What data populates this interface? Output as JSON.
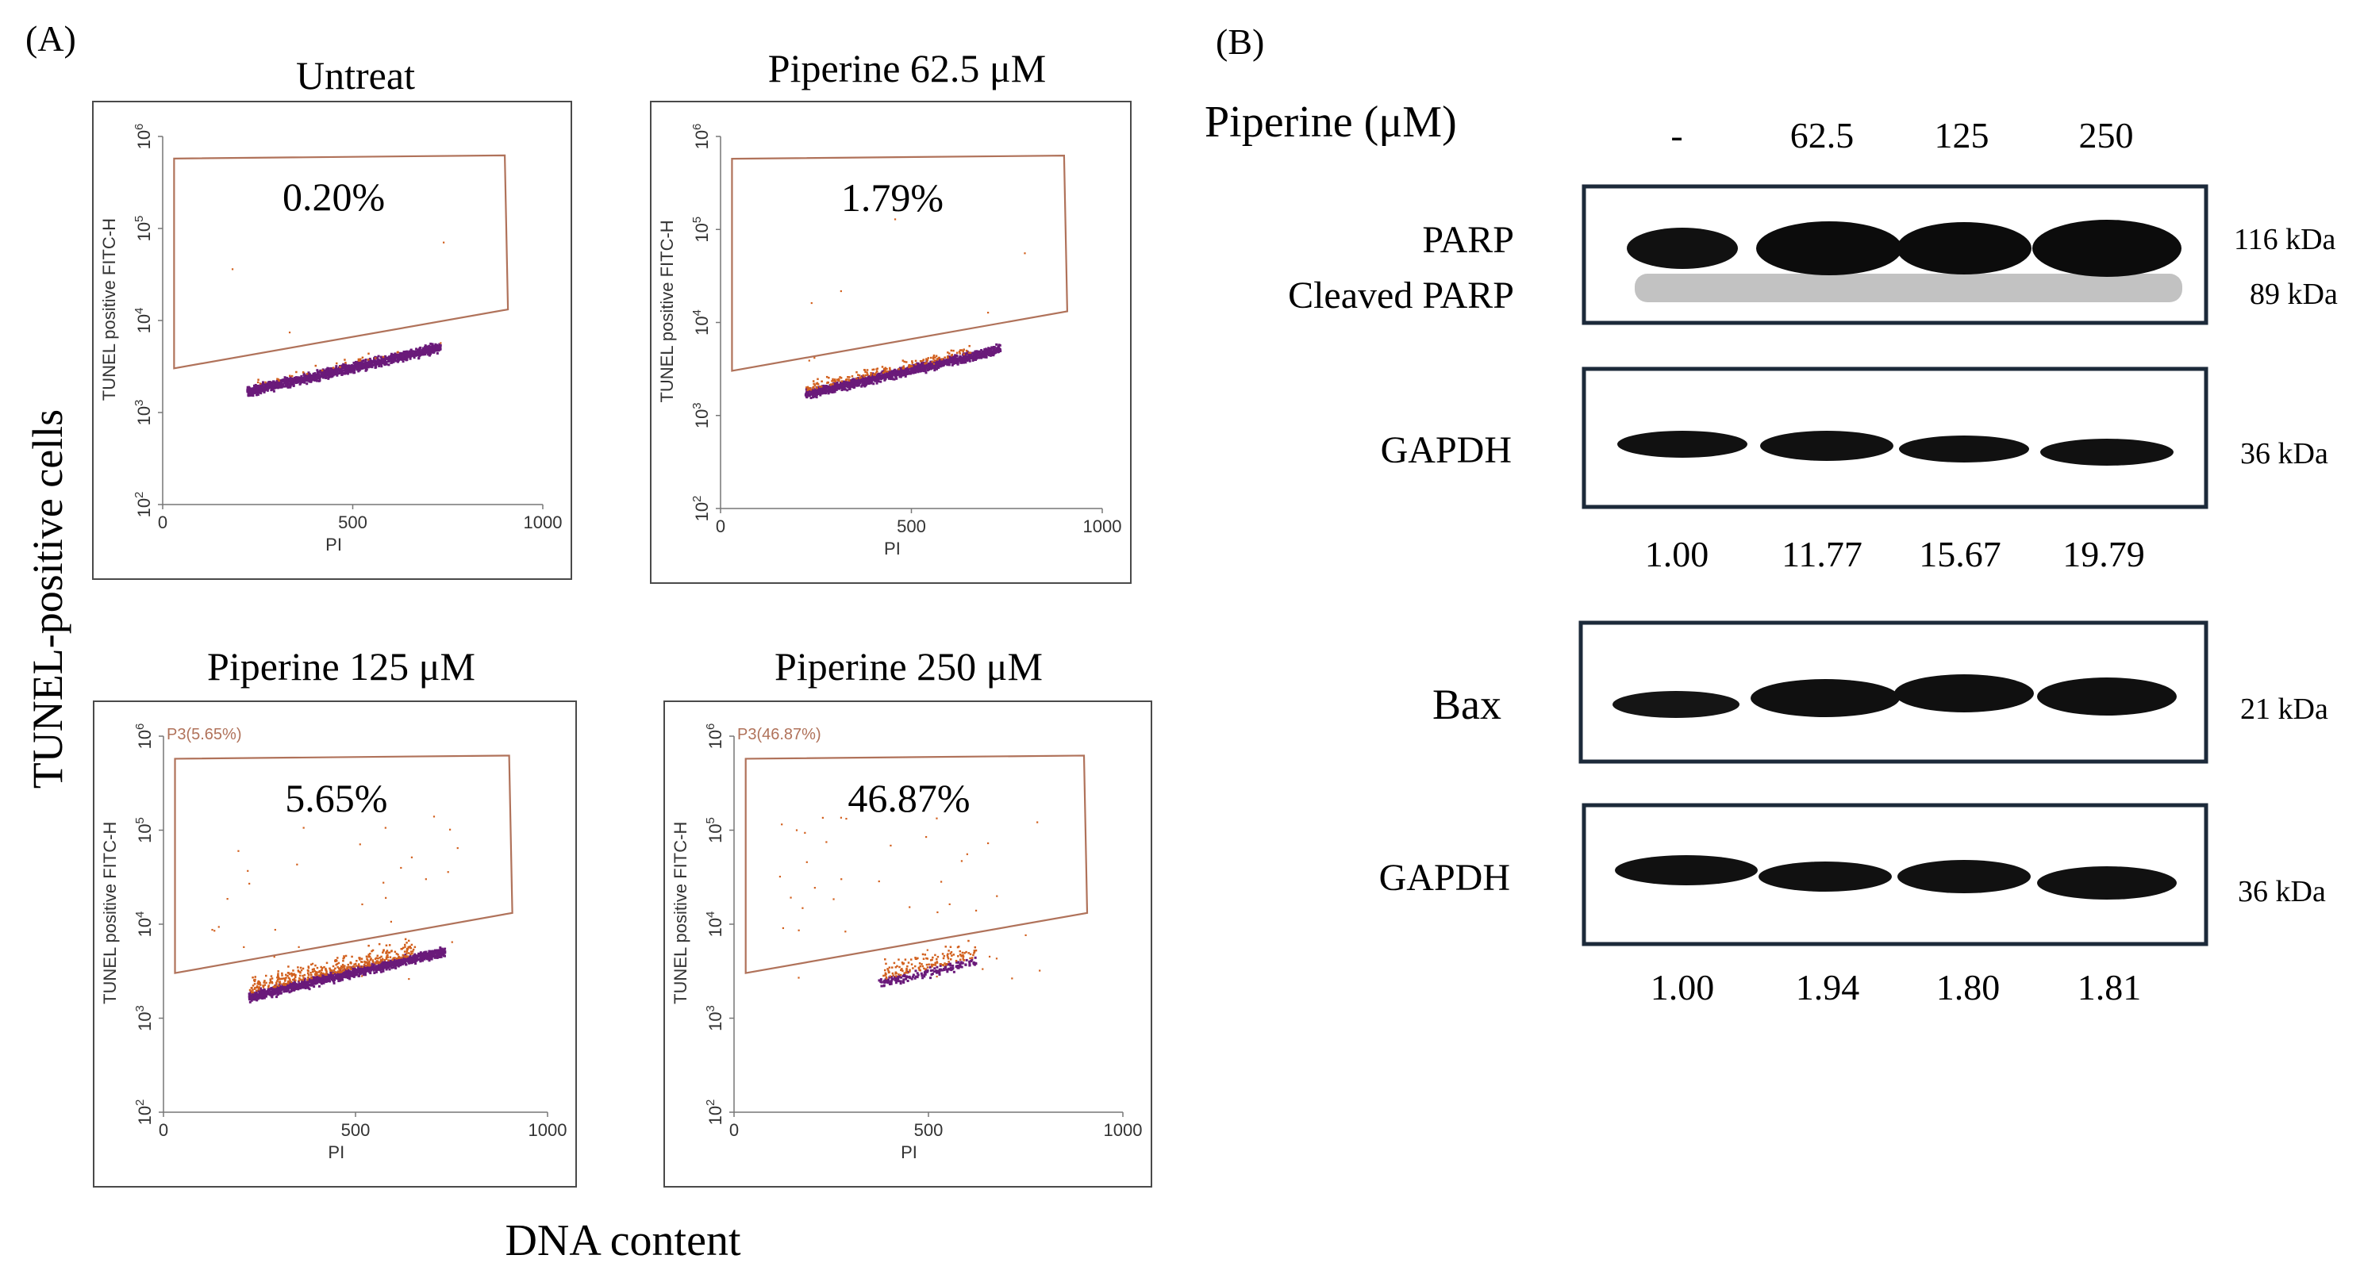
{
  "panel_a": {
    "label": "(A)",
    "y_title": "TUNEL-positive cells",
    "x_title": "DNA content",
    "plots": [
      {
        "title": "Untreat",
        "percent": "0.20%",
        "gate_label": "",
        "ylabel": "TUNEL positive FITC-H",
        "xlabel": "PI",
        "x_ticks": [
          "0",
          "500",
          "1000"
        ],
        "y_ticks": [
          "10",
          "10",
          "10",
          "10",
          "10"
        ],
        "y_exp": [
          "2",
          "3",
          "4",
          "5",
          "6"
        ]
      },
      {
        "title": "Piperine 62.5 μM",
        "percent": "1.79%",
        "gate_label": "",
        "ylabel": "TUNEL positive FITC-H",
        "xlabel": "PI",
        "x_ticks": [
          "0",
          "500",
          "1000"
        ],
        "y_ticks": [
          "10",
          "10",
          "10",
          "10",
          "10"
        ],
        "y_exp": [
          "2",
          "3",
          "4",
          "5",
          "6"
        ]
      },
      {
        "title": "Piperine 125 μM",
        "percent": "5.65%",
        "gate_label": "P3(5.65%)",
        "ylabel": "TUNEL positive FITC-H",
        "xlabel": "PI",
        "x_ticks": [
          "0",
          "500",
          "1000"
        ],
        "y_ticks": [
          "10",
          "10",
          "10",
          "10",
          "10"
        ],
        "y_exp": [
          "2",
          "3",
          "4",
          "5",
          "6"
        ]
      },
      {
        "title": "Piperine 250 μM",
        "percent": "46.87%",
        "gate_label": "P3(46.87%)",
        "ylabel": "TUNEL positive FITC-H",
        "xlabel": "PI",
        "x_ticks": [
          "0",
          "500",
          "1000"
        ],
        "y_ticks": [
          "10",
          "10",
          "10",
          "10",
          "10"
        ],
        "y_exp": [
          "2",
          "3",
          "4",
          "5",
          "6"
        ]
      }
    ]
  },
  "panel_b": {
    "label": "(B)",
    "treatment_label": "Piperine (μM)",
    "lanes": [
      "-",
      "62.5",
      "125",
      "250"
    ],
    "blots": [
      {
        "labels": [
          "PARP",
          "Cleaved PARP"
        ],
        "sizes": [
          "116 kDa",
          "89 kDa"
        ]
      },
      {
        "labels": [
          "GAPDH"
        ],
        "sizes": [
          "36 kDa"
        ]
      },
      {
        "labels": [
          "Bax"
        ],
        "sizes": [
          "21 kDa"
        ]
      },
      {
        "labels": [
          "GAPDH"
        ],
        "sizes": [
          "36 kDa"
        ]
      }
    ],
    "quant_parp": [
      "1.00",
      "11.77",
      "15.67",
      "19.79"
    ],
    "quant_bax": [
      "1.00",
      "1.94",
      "1.80",
      "1.81"
    ]
  },
  "colors": {
    "gate": "#b0725a",
    "dots_main": "#6a1a7a",
    "dots_apoptotic": "#d2601e",
    "box_border": "#1c2a3a",
    "band": "#111111"
  }
}
